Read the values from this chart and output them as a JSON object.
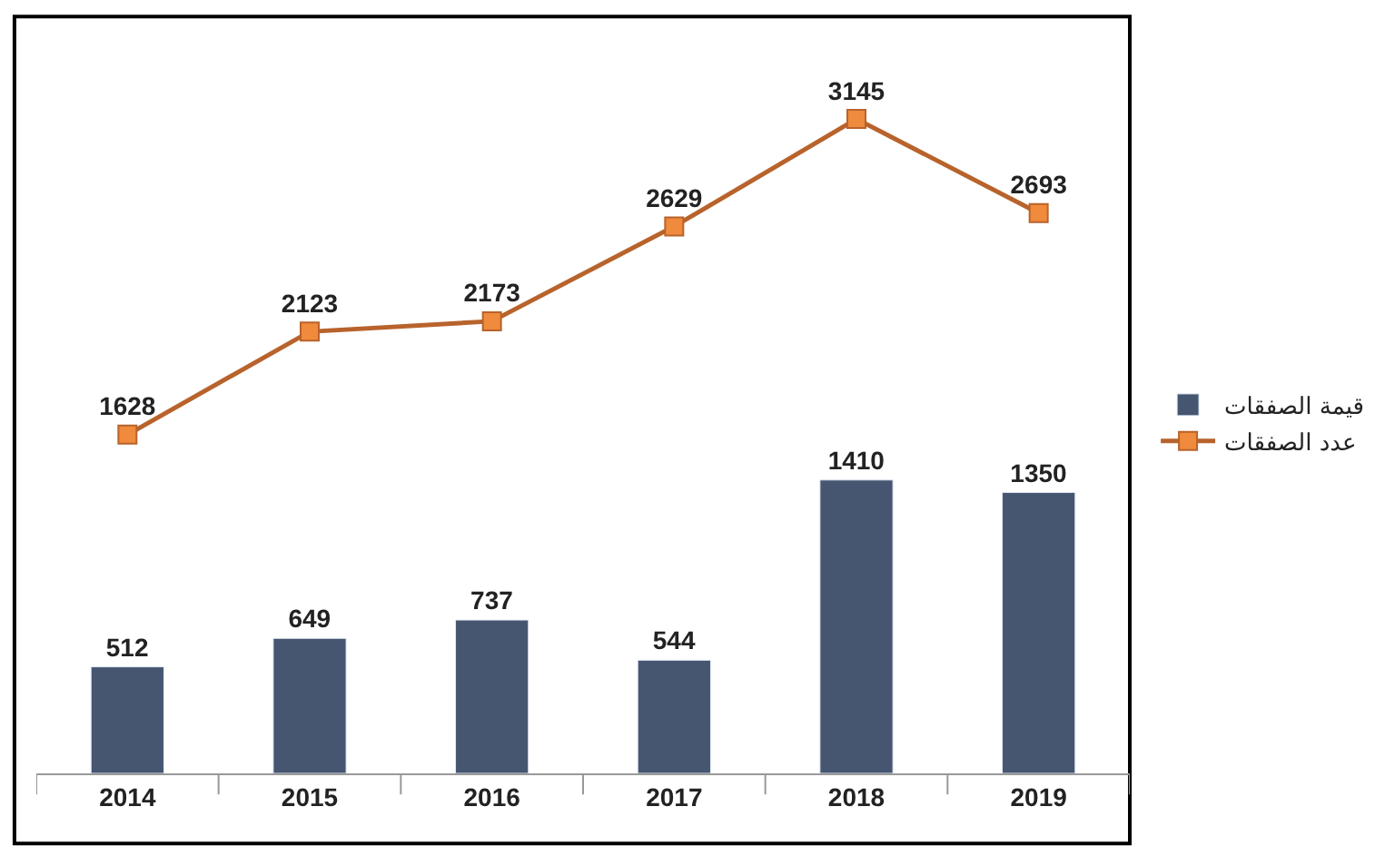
{
  "chart_data": {
    "type": "bar",
    "categories": [
      "2014",
      "2015",
      "2016",
      "2017",
      "2018",
      "2019"
    ],
    "series": [
      {
        "name": "قيمة الصفقات",
        "color": "#465671",
        "values": [
          512,
          649,
          737,
          544,
          1410,
          1350
        ]
      },
      {
        "name": "عدد الصفقات",
        "type": "line",
        "color": "#b8632c",
        "values": [
          1628,
          2123,
          2173,
          2629,
          3145,
          2693
        ]
      }
    ],
    "data_labels": true,
    "legend": "right",
    "marker": "square",
    "line_style": "solid",
    "tick_labels": "x"
  }
}
